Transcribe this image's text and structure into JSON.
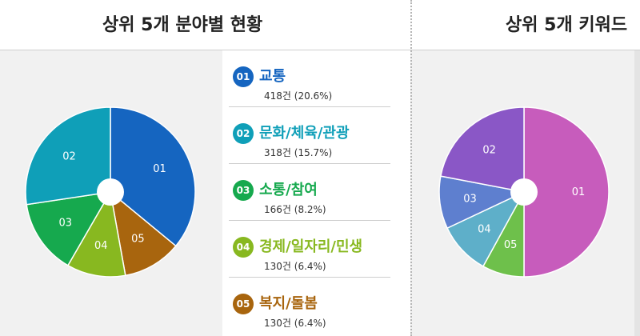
{
  "header": {
    "left_title": "상위 5개 분야별 현황",
    "right_title": "상위 5개 키워드"
  },
  "legend": [
    {
      "num": "01",
      "label": "교통",
      "value": "418건 (20.6%)",
      "color": "#1565c0"
    },
    {
      "num": "02",
      "label": "문화/체육/관광",
      "value": "318건 (15.7%)",
      "color": "#0f9fb8"
    },
    {
      "num": "03",
      "label": "소통/참여",
      "value": "166건 (8.2%)",
      "color": "#16a94e"
    },
    {
      "num": "04",
      "label": "경제/일자리/민생",
      "value": "130건 (6.4%)",
      "color": "#88b820"
    },
    {
      "num": "05",
      "label": "복지/돌봄",
      "value": "130건 (6.4%)",
      "color": "#a8650e"
    }
  ],
  "chart_data": [
    {
      "type": "pie",
      "title": "상위 5개 분야별 현황",
      "categories": [
        "01",
        "02",
        "03",
        "04",
        "05"
      ],
      "values": [
        418,
        318,
        166,
        130,
        130
      ],
      "colors": [
        "#1565c0",
        "#0f9fb8",
        "#16a94e",
        "#88b820",
        "#a8650e"
      ],
      "start": "top",
      "direction": "clockwise",
      "slice_order": [
        0,
        4,
        3,
        2,
        1
      ],
      "donut_hole": true
    },
    {
      "type": "pie",
      "title": "상위 5개 키워드",
      "categories": [
        "01",
        "05",
        "04",
        "03",
        "02"
      ],
      "values": [
        50,
        8,
        10,
        10,
        22
      ],
      "colors": [
        "#c75cbc",
        "#6ec04b",
        "#5eafc9",
        "#5e7fcf",
        "#8a57c6"
      ],
      "start": "top",
      "direction": "clockwise",
      "slice_order": [
        0,
        1,
        2,
        3,
        4
      ],
      "donut_hole": true
    }
  ]
}
